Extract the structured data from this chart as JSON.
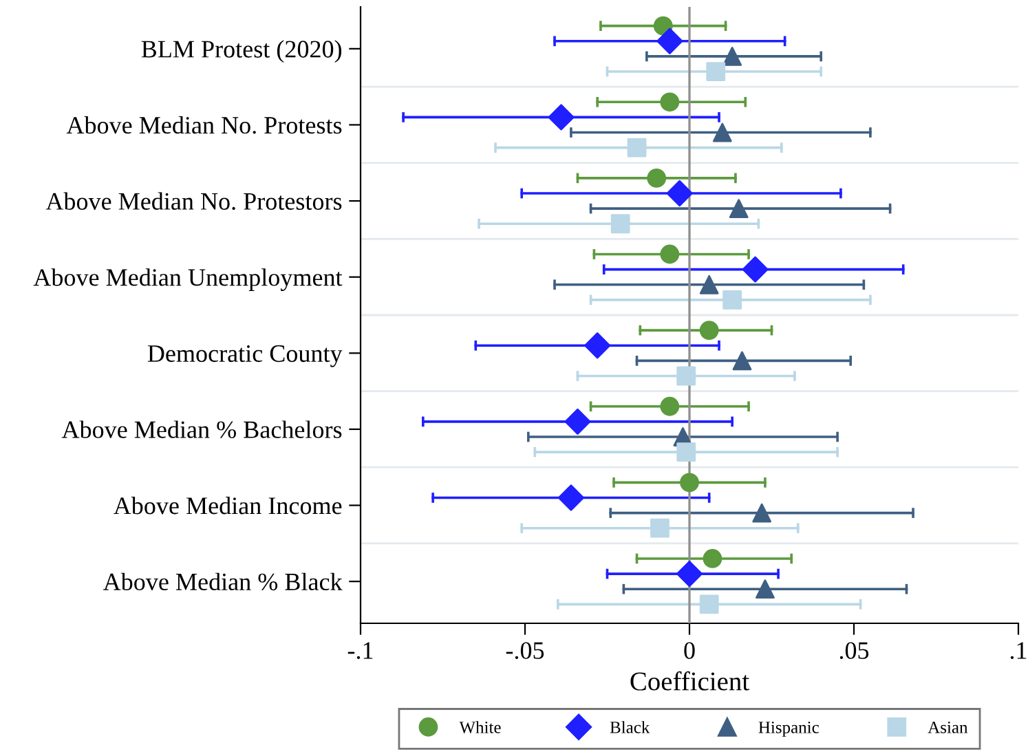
{
  "chart_data": {
    "type": "scatter",
    "orientation": "horizontal",
    "xlabel": "Coefficient",
    "categories": [
      "BLM Protest (2020)",
      "Above Median No. Protests",
      "Above Median No. Protestors",
      "Above Median Unemployment",
      "Democratic County",
      "Above Median % Bachelors",
      "Above Median Income",
      "Above Median % Black"
    ],
    "xlim": [
      -0.1,
      0.1
    ],
    "xticks": [
      {
        "value": -0.1,
        "label": "-.1"
      },
      {
        "value": -0.05,
        "label": "-.05"
      },
      {
        "value": 0,
        "label": "0"
      },
      {
        "value": 0.05,
        "label": ".05"
      },
      {
        "value": 0.1,
        "label": ".1"
      }
    ],
    "grid": "y",
    "legend": "bottom",
    "ref_lines": [
      {
        "axis": "x",
        "value": 0,
        "color": "#909090"
      }
    ],
    "series": [
      {
        "name": "White",
        "color": "#5c9a3e",
        "marker": "circle",
        "values": [
          -0.008,
          -0.006,
          -0.01,
          -0.006,
          0.006,
          -0.006,
          0.0,
          0.007
        ],
        "errors": [
          [
            -0.027,
            0.011
          ],
          [
            -0.028,
            0.017
          ],
          [
            -0.034,
            0.014
          ],
          [
            -0.029,
            0.018
          ],
          [
            -0.015,
            0.025
          ],
          [
            -0.03,
            0.018
          ],
          [
            -0.023,
            0.023
          ],
          [
            -0.016,
            0.031
          ]
        ]
      },
      {
        "name": "Black",
        "color": "#1f1fff",
        "marker": "diamond",
        "values": [
          -0.006,
          -0.039,
          -0.003,
          0.02,
          -0.028,
          -0.034,
          -0.036,
          0.0
        ],
        "errors": [
          [
            -0.041,
            0.029
          ],
          [
            -0.087,
            0.009
          ],
          [
            -0.051,
            0.046
          ],
          [
            -0.026,
            0.065
          ],
          [
            -0.065,
            0.009
          ],
          [
            -0.081,
            0.013
          ],
          [
            -0.078,
            0.006
          ],
          [
            -0.025,
            0.027
          ]
        ]
      },
      {
        "name": "Hispanic",
        "color": "#3f5f82",
        "marker": "triangle",
        "values": [
          0.013,
          0.01,
          0.015,
          0.006,
          0.016,
          -0.002,
          0.022,
          0.023
        ],
        "errors": [
          [
            -0.013,
            0.04
          ],
          [
            -0.036,
            0.055
          ],
          [
            -0.03,
            0.061
          ],
          [
            -0.041,
            0.053
          ],
          [
            -0.016,
            0.049
          ],
          [
            -0.049,
            0.045
          ],
          [
            -0.024,
            0.068
          ],
          [
            -0.02,
            0.066
          ]
        ]
      },
      {
        "name": "Asian",
        "color": "#b9d7e6",
        "marker": "square",
        "values": [
          0.008,
          -0.016,
          -0.021,
          0.013,
          -0.001,
          -0.001,
          -0.009,
          0.006
        ],
        "errors": [
          [
            -0.025,
            0.04
          ],
          [
            -0.059,
            0.028
          ],
          [
            -0.064,
            0.021
          ],
          [
            -0.03,
            0.055
          ],
          [
            -0.034,
            0.032
          ],
          [
            -0.047,
            0.045
          ],
          [
            -0.051,
            0.033
          ],
          [
            -0.04,
            0.052
          ]
        ]
      }
    ]
  }
}
